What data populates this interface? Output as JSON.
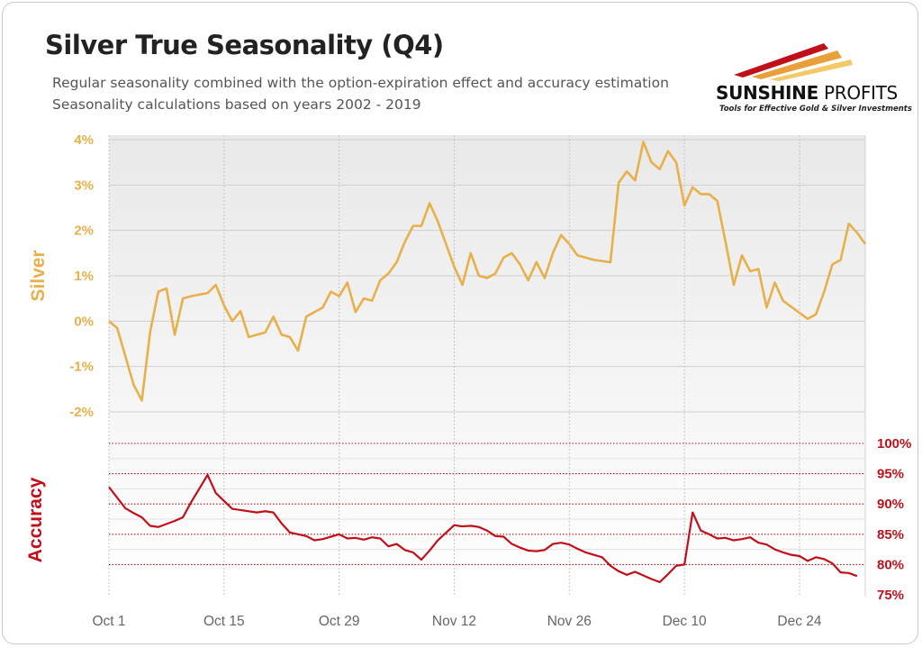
{
  "header": {
    "title": "Silver True Seasonality (Q4)",
    "subtitle_line1": "Regular seasonality combined with the option-expiration effect and accuracy estimation",
    "subtitle_line2": "Seasonality calculations based on years 2002 - 2019"
  },
  "logo": {
    "name_bold": "SUNSHINE",
    "name_light": " PROFITS",
    "tagline": "Tools for Effective Gold & Silver Investments",
    "colors": [
      "#c0101a",
      "#e8a13a",
      "#f3c969"
    ]
  },
  "colors": {
    "silver": "#e8b04a",
    "accuracy": "#c0101a",
    "grid": "#cfcfcf",
    "x_tick": "#666666"
  },
  "chart_data": [
    {
      "type": "line",
      "title": "",
      "ylabel": "Silver",
      "ylim": [
        -2.5,
        4
      ],
      "yticks": [
        "4%",
        "3%",
        "2%",
        "1%",
        "0%",
        "-1%",
        "-2%"
      ],
      "ytick_values": [
        4,
        3,
        2,
        1,
        0,
        -1,
        -2
      ],
      "xlim": [
        0,
        91
      ],
      "xticks": [
        "Oct 1",
        "Oct 15",
        "Oct 29",
        "Nov 12",
        "Nov 26",
        "Dec 10",
        "Dec 24"
      ],
      "xtick_values": [
        0,
        14,
        28,
        42,
        56,
        70,
        84
      ],
      "grid": true,
      "series": [
        {
          "name": "",
          "points": [
            [
              0,
              0.0
            ],
            [
              1,
              -0.15
            ],
            [
              3,
              -1.4
            ],
            [
              4,
              -1.75
            ],
            [
              5,
              -0.25
            ],
            [
              6,
              0.65
            ],
            [
              7,
              0.72
            ],
            [
              8,
              -0.3
            ],
            [
              9,
              0.5
            ],
            [
              10,
              0.55
            ],
            [
              12,
              0.62
            ],
            [
              13,
              0.8
            ],
            [
              14,
              0.35
            ],
            [
              15,
              0.0
            ],
            [
              16,
              0.22
            ],
            [
              17,
              -0.35
            ],
            [
              18,
              -0.3
            ],
            [
              19,
              -0.25
            ],
            [
              20,
              0.1
            ],
            [
              21,
              -0.3
            ],
            [
              22,
              -0.35
            ],
            [
              23,
              -0.65
            ],
            [
              24,
              0.1
            ],
            [
              25,
              0.2
            ],
            [
              26,
              0.3
            ],
            [
              27,
              0.65
            ],
            [
              28,
              0.55
            ],
            [
              29,
              0.85
            ],
            [
              30,
              0.2
            ],
            [
              31,
              0.5
            ],
            [
              32,
              0.45
            ],
            [
              33,
              0.9
            ],
            [
              34,
              1.05
            ],
            [
              35,
              1.3
            ],
            [
              36,
              1.75
            ],
            [
              37,
              2.1
            ],
            [
              38,
              2.1
            ],
            [
              39,
              2.6
            ],
            [
              40,
              2.2
            ],
            [
              41,
              1.7
            ],
            [
              42,
              1.2
            ],
            [
              43,
              0.8
            ],
            [
              44,
              1.5
            ],
            [
              45,
              1.0
            ],
            [
              46,
              0.95
            ],
            [
              47,
              1.05
            ],
            [
              48,
              1.4
            ],
            [
              49,
              1.5
            ],
            [
              50,
              1.25
            ],
            [
              51,
              0.9
            ],
            [
              52,
              1.3
            ],
            [
              53,
              0.95
            ],
            [
              54,
              1.5
            ],
            [
              55,
              1.9
            ],
            [
              56,
              1.7
            ],
            [
              57,
              1.45
            ],
            [
              58,
              1.4
            ],
            [
              59,
              1.35
            ],
            [
              61,
              1.3
            ],
            [
              62,
              3.05
            ],
            [
              63,
              3.3
            ],
            [
              64,
              3.1
            ],
            [
              65,
              3.95
            ],
            [
              66,
              3.5
            ],
            [
              67,
              3.35
            ],
            [
              68,
              3.75
            ],
            [
              69,
              3.5
            ],
            [
              70,
              2.55
            ],
            [
              71,
              2.95
            ],
            [
              72,
              2.8
            ],
            [
              73,
              2.8
            ],
            [
              74,
              2.65
            ],
            [
              75,
              1.75
            ],
            [
              76,
              0.8
            ],
            [
              77,
              1.45
            ],
            [
              78,
              1.1
            ],
            [
              79,
              1.15
            ],
            [
              80,
              0.3
            ],
            [
              81,
              0.85
            ],
            [
              82,
              0.45
            ],
            [
              85,
              0.05
            ],
            [
              86,
              0.15
            ],
            [
              87,
              0.65
            ],
            [
              88,
              1.25
            ],
            [
              89,
              1.35
            ],
            [
              90,
              2.15
            ],
            [
              91,
              1.95
            ],
            [
              92,
              1.7
            ]
          ]
        }
      ]
    },
    {
      "type": "line",
      "title": "",
      "ylabel": "Accuracy",
      "ylim": [
        75,
        100
      ],
      "yticks": [
        "100%",
        "95%",
        "90%",
        "85%",
        "80%",
        "75%"
      ],
      "ytick_values": [
        100,
        95,
        90,
        85,
        80,
        75
      ],
      "xlim": [
        0,
        91
      ],
      "grid": true,
      "series": [
        {
          "name": "",
          "points": [
            [
              0,
              92.8
            ],
            [
              2,
              89.3
            ],
            [
              3,
              88.5
            ],
            [
              4,
              87.8
            ],
            [
              5,
              86.4
            ],
            [
              6,
              86.2
            ],
            [
              8,
              87.2
            ],
            [
              9,
              87.8
            ],
            [
              10,
              90.3
            ],
            [
              12,
              94.8
            ],
            [
              13,
              91.8
            ],
            [
              14,
              90.5
            ],
            [
              15,
              89.2
            ],
            [
              16,
              89.0
            ],
            [
              18,
              88.6
            ],
            [
              19,
              88.8
            ],
            [
              20,
              88.6
            ],
            [
              21,
              86.8
            ],
            [
              22,
              85.3
            ],
            [
              23,
              85.0
            ],
            [
              24,
              84.7
            ],
            [
              25,
              84.0
            ],
            [
              26,
              84.2
            ],
            [
              28,
              85.0
            ],
            [
              29,
              84.3
            ],
            [
              30,
              84.4
            ],
            [
              31,
              84.1
            ],
            [
              32,
              84.5
            ],
            [
              33,
              84.3
            ],
            [
              34,
              83.0
            ],
            [
              35,
              83.4
            ],
            [
              36,
              82.4
            ],
            [
              37,
              82.0
            ],
            [
              38,
              80.8
            ],
            [
              39,
              82.3
            ],
            [
              40,
              84.0
            ],
            [
              42,
              86.5
            ],
            [
              43,
              86.3
            ],
            [
              44,
              86.4
            ],
            [
              45,
              86.2
            ],
            [
              46,
              85.6
            ],
            [
              47,
              84.7
            ],
            [
              48,
              84.6
            ],
            [
              49,
              83.4
            ],
            [
              50,
              82.8
            ],
            [
              51,
              82.3
            ],
            [
              52,
              82.2
            ],
            [
              53,
              82.4
            ],
            [
              54,
              83.4
            ],
            [
              55,
              83.6
            ],
            [
              56,
              83.3
            ],
            [
              57,
              82.6
            ],
            [
              58,
              82.0
            ],
            [
              59,
              81.6
            ],
            [
              60,
              81.2
            ],
            [
              61,
              79.8
            ],
            [
              62,
              78.9
            ],
            [
              63,
              78.3
            ],
            [
              64,
              78.8
            ],
            [
              65,
              78.2
            ],
            [
              66,
              77.6
            ],
            [
              67,
              77.1
            ],
            [
              68,
              78.4
            ],
            [
              69,
              79.8
            ],
            [
              70,
              80.0
            ],
            [
              71,
              88.6
            ],
            [
              72,
              85.6
            ],
            [
              73,
              85.0
            ],
            [
              74,
              84.3
            ],
            [
              75,
              84.4
            ],
            [
              76,
              84.0
            ],
            [
              77,
              84.2
            ],
            [
              78,
              84.5
            ],
            [
              79,
              83.6
            ],
            [
              80,
              83.3
            ],
            [
              81,
              82.5
            ],
            [
              82,
              82.0
            ],
            [
              83,
              81.6
            ],
            [
              84,
              81.4
            ],
            [
              85,
              80.6
            ],
            [
              86,
              81.2
            ],
            [
              87,
              80.9
            ],
            [
              88,
              80.2
            ],
            [
              89,
              78.7
            ],
            [
              90,
              78.6
            ],
            [
              91,
              78.1
            ]
          ]
        }
      ]
    }
  ]
}
